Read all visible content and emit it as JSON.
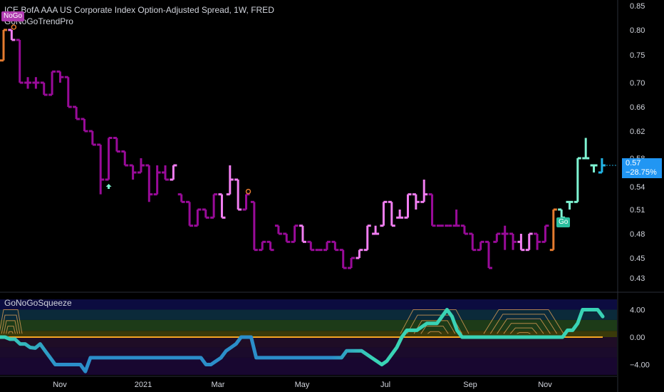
{
  "title": "ICE BofA AAA US Corporate Index Option-Adjusted Spread, 1W, FRED",
  "indicator": "GoNoGoTrendPro",
  "badges": {
    "nogo": "NoGo",
    "go": "Go"
  },
  "price_tag": {
    "value": "0.57",
    "change": "−28.75%"
  },
  "squeeze_title": "GoNoGoSqueeze",
  "colors": {
    "background": "#000000",
    "nogo_dark": "#990b99",
    "nogo_light": "#f27ef2",
    "go_light": "#7ff5d3",
    "go_strong": "#22b5e6",
    "amber": "#e57b2f",
    "zero_line": "#f5a623",
    "squeeze_line_start": "#2b8ec9",
    "squeeze_line_end": "#39d3b5"
  },
  "chart_data": [
    {
      "type": "line",
      "subtype": "ohlc-bars",
      "title": "ICE BofA AAA US Corporate Index Option-Adjusted Spread, 1W, FRED",
      "ylim": [
        0.41,
        0.86
      ],
      "y_ticks": [
        "0.85",
        "0.80",
        "0.75",
        "0.70",
        "0.66",
        "0.62",
        "0.58",
        "0.54",
        "0.51",
        "0.48",
        "0.45",
        "0.43"
      ],
      "x_ticks": [
        "Nov",
        "2021",
        "Mar",
        "May",
        "Jul",
        "Sep",
        "Nov"
      ],
      "series": [
        {
          "name": "GoNoGoTrendPro",
          "bars": [
            {
              "o": 0.74,
              "h": 0.8,
              "l": 0.74,
              "c": 0.8,
              "s": "amber"
            },
            {
              "o": 0.8,
              "h": 0.8,
              "l": 0.78,
              "c": 0.78,
              "s": "nogo_light"
            },
            {
              "o": 0.78,
              "h": 0.78,
              "l": 0.7,
              "c": 0.7,
              "s": "nogo_dark"
            },
            {
              "o": 0.7,
              "h": 0.71,
              "l": 0.69,
              "c": 0.7,
              "s": "nogo_dark"
            },
            {
              "o": 0.7,
              "h": 0.71,
              "l": 0.69,
              "c": 0.7,
              "s": "nogo_dark"
            },
            {
              "o": 0.7,
              "h": 0.7,
              "l": 0.68,
              "c": 0.68,
              "s": "nogo_dark"
            },
            {
              "o": 0.68,
              "h": 0.72,
              "l": 0.68,
              "c": 0.72,
              "s": "nogo_dark"
            },
            {
              "o": 0.72,
              "h": 0.72,
              "l": 0.7,
              "c": 0.71,
              "s": "nogo_dark"
            },
            {
              "o": 0.71,
              "h": 0.71,
              "l": 0.66,
              "c": 0.66,
              "s": "nogo_dark"
            },
            {
              "o": 0.66,
              "h": 0.66,
              "l": 0.64,
              "c": 0.64,
              "s": "nogo_dark"
            },
            {
              "o": 0.64,
              "h": 0.64,
              "l": 0.62,
              "c": 0.62,
              "s": "nogo_dark"
            },
            {
              "o": 0.62,
              "h": 0.62,
              "l": 0.6,
              "c": 0.6,
              "s": "nogo_dark"
            },
            {
              "o": 0.6,
              "h": 0.6,
              "l": 0.53,
              "c": 0.55,
              "s": "nogo_dark"
            },
            {
              "o": 0.55,
              "h": 0.61,
              "l": 0.55,
              "c": 0.61,
              "s": "nogo_dark"
            },
            {
              "o": 0.61,
              "h": 0.61,
              "l": 0.59,
              "c": 0.59,
              "s": "nogo_dark"
            },
            {
              "o": 0.59,
              "h": 0.59,
              "l": 0.57,
              "c": 0.57,
              "s": "nogo_dark"
            },
            {
              "o": 0.57,
              "h": 0.57,
              "l": 0.55,
              "c": 0.56,
              "s": "nogo_dark"
            },
            {
              "o": 0.56,
              "h": 0.58,
              "l": 0.56,
              "c": 0.57,
              "s": "nogo_dark"
            },
            {
              "o": 0.57,
              "h": 0.57,
              "l": 0.52,
              "c": 0.53,
              "s": "nogo_dark"
            },
            {
              "o": 0.53,
              "h": 0.57,
              "l": 0.53,
              "c": 0.56,
              "s": "nogo_dark"
            },
            {
              "o": 0.56,
              "h": 0.57,
              "l": 0.55,
              "c": 0.55,
              "s": "nogo_dark"
            },
            {
              "o": 0.55,
              "h": 0.57,
              "l": 0.55,
              "c": 0.57,
              "s": "nogo_light"
            },
            {
              "o": 0.53,
              "h": 0.53,
              "l": 0.52,
              "c": 0.52,
              "s": "nogo_dark"
            },
            {
              "o": 0.52,
              "h": 0.52,
              "l": 0.49,
              "c": 0.49,
              "s": "nogo_dark"
            },
            {
              "o": 0.49,
              "h": 0.51,
              "l": 0.49,
              "c": 0.51,
              "s": "nogo_dark"
            },
            {
              "o": 0.51,
              "h": 0.51,
              "l": 0.5,
              "c": 0.5,
              "s": "nogo_dark"
            },
            {
              "o": 0.5,
              "h": 0.53,
              "l": 0.5,
              "c": 0.53,
              "s": "nogo_dark"
            },
            {
              "o": 0.53,
              "h": 0.53,
              "l": 0.5,
              "c": 0.5,
              "s": "nogo_light"
            },
            {
              "o": 0.53,
              "h": 0.57,
              "l": 0.53,
              "c": 0.55,
              "s": "nogo_light"
            },
            {
              "o": 0.55,
              "h": 0.55,
              "l": 0.51,
              "c": 0.51,
              "s": "nogo_light"
            },
            {
              "o": 0.51,
              "h": 0.53,
              "l": 0.51,
              "c": 0.53,
              "s": "nogo_dark"
            },
            {
              "o": 0.52,
              "h": 0.52,
              "l": 0.46,
              "c": 0.46,
              "s": "nogo_dark"
            },
            {
              "o": 0.46,
              "h": 0.47,
              "l": 0.46,
              "c": 0.47,
              "s": "nogo_dark"
            },
            {
              "o": 0.47,
              "h": 0.47,
              "l": 0.46,
              "c": 0.46,
              "s": "nogo_dark"
            },
            {
              "o": 0.49,
              "h": 0.49,
              "l": 0.48,
              "c": 0.48,
              "s": "nogo_dark"
            },
            {
              "o": 0.48,
              "h": 0.48,
              "l": 0.47,
              "c": 0.47,
              "s": "nogo_dark"
            },
            {
              "o": 0.47,
              "h": 0.49,
              "l": 0.47,
              "c": 0.49,
              "s": "nogo_dark"
            },
            {
              "o": 0.49,
              "h": 0.49,
              "l": 0.47,
              "c": 0.47,
              "s": "nogo_light"
            },
            {
              "o": 0.47,
              "h": 0.47,
              "l": 0.46,
              "c": 0.46,
              "s": "nogo_dark"
            },
            {
              "o": 0.46,
              "h": 0.46,
              "l": 0.46,
              "c": 0.46,
              "s": "nogo_dark"
            },
            {
              "o": 0.46,
              "h": 0.47,
              "l": 0.46,
              "c": 0.47,
              "s": "nogo_dark"
            },
            {
              "o": 0.47,
              "h": 0.47,
              "l": 0.46,
              "c": 0.46,
              "s": "nogo_dark"
            },
            {
              "o": 0.46,
              "h": 0.46,
              "l": 0.44,
              "c": 0.44,
              "s": "nogo_dark"
            },
            {
              "o": 0.44,
              "h": 0.45,
              "l": 0.44,
              "c": 0.45,
              "s": "nogo_dark"
            },
            {
              "o": 0.45,
              "h": 0.46,
              "l": 0.45,
              "c": 0.46,
              "s": "nogo_light"
            },
            {
              "o": 0.46,
              "h": 0.49,
              "l": 0.46,
              "c": 0.49,
              "s": "nogo_light"
            },
            {
              "o": 0.48,
              "h": 0.49,
              "l": 0.48,
              "c": 0.48,
              "s": "nogo_light"
            },
            {
              "o": 0.49,
              "h": 0.52,
              "l": 0.49,
              "c": 0.52,
              "s": "nogo_light"
            },
            {
              "o": 0.52,
              "h": 0.52,
              "l": 0.49,
              "c": 0.49,
              "s": "nogo_light"
            },
            {
              "o": 0.5,
              "h": 0.51,
              "l": 0.5,
              "c": 0.5,
              "s": "nogo_light"
            },
            {
              "o": 0.5,
              "h": 0.53,
              "l": 0.5,
              "c": 0.53,
              "s": "nogo_light"
            },
            {
              "o": 0.53,
              "h": 0.53,
              "l": 0.51,
              "c": 0.52,
              "s": "nogo_light"
            },
            {
              "o": 0.52,
              "h": 0.55,
              "l": 0.52,
              "c": 0.53,
              "s": "nogo_light"
            },
            {
              "o": 0.53,
              "h": 0.53,
              "l": 0.49,
              "c": 0.49,
              "s": "nogo_dark"
            },
            {
              "o": 0.49,
              "h": 0.49,
              "l": 0.49,
              "c": 0.49,
              "s": "nogo_dark"
            },
            {
              "o": 0.49,
              "h": 0.49,
              "l": 0.49,
              "c": 0.49,
              "s": "nogo_dark"
            },
            {
              "o": 0.49,
              "h": 0.51,
              "l": 0.49,
              "c": 0.49,
              "s": "nogo_dark"
            },
            {
              "o": 0.49,
              "h": 0.49,
              "l": 0.48,
              "c": 0.48,
              "s": "nogo_dark"
            },
            {
              "o": 0.48,
              "h": 0.48,
              "l": 0.46,
              "c": 0.46,
              "s": "nogo_dark"
            },
            {
              "o": 0.46,
              "h": 0.47,
              "l": 0.46,
              "c": 0.47,
              "s": "nogo_dark"
            },
            {
              "o": 0.47,
              "h": 0.47,
              "l": 0.44,
              "c": 0.44,
              "s": "nogo_dark"
            },
            {
              "o": 0.47,
              "h": 0.48,
              "l": 0.47,
              "c": 0.48,
              "s": "nogo_dark"
            },
            {
              "o": 0.48,
              "h": 0.49,
              "l": 0.46,
              "c": 0.48,
              "s": "nogo_dark"
            },
            {
              "o": 0.48,
              "h": 0.48,
              "l": 0.46,
              "c": 0.47,
              "s": "nogo_dark"
            },
            {
              "o": 0.47,
              "h": 0.48,
              "l": 0.46,
              "c": 0.46,
              "s": "nogo_light"
            },
            {
              "o": 0.46,
              "h": 0.48,
              "l": 0.46,
              "c": 0.48,
              "s": "nogo_light"
            },
            {
              "o": 0.48,
              "h": 0.48,
              "l": 0.46,
              "c": 0.47,
              "s": "nogo_dark"
            },
            {
              "o": 0.47,
              "h": 0.49,
              "l": 0.47,
              "c": 0.49,
              "s": "nogo_dark"
            },
            {
              "o": 0.46,
              "h": 0.51,
              "l": 0.46,
              "c": 0.51,
              "s": "amber"
            },
            {
              "o": 0.51,
              "h": 0.51,
              "l": 0.5,
              "c": 0.5,
              "s": "go_light"
            },
            {
              "o": 0.52,
              "h": 0.52,
              "l": 0.51,
              "c": 0.52,
              "s": "go_light"
            },
            {
              "o": 0.52,
              "h": 0.58,
              "l": 0.52,
              "c": 0.58,
              "s": "go_light"
            },
            {
              "o": 0.58,
              "h": 0.61,
              "l": 0.58,
              "c": 0.58,
              "s": "go_light"
            },
            {
              "o": 0.57,
              "h": 0.57,
              "l": 0.56,
              "c": 0.57,
              "s": "go_light"
            },
            {
              "o": 0.56,
              "h": 0.58,
              "l": 0.56,
              "c": 0.57,
              "s": "go_strong"
            }
          ]
        }
      ],
      "annotations": [
        {
          "bar": 1,
          "kind": "circle",
          "color": "amber"
        },
        {
          "bar": 13,
          "kind": "arrow-up",
          "color": "go_light"
        },
        {
          "bar": 30,
          "kind": "circle",
          "color": "amber"
        },
        {
          "bar": 69,
          "kind": "arrow-up",
          "color": "go_light"
        }
      ]
    },
    {
      "type": "line",
      "title": "GoNoGoSqueeze",
      "ylim": [
        -5.5,
        5.5
      ],
      "y_ticks": [
        "4.00",
        "0.00",
        "−4.00"
      ],
      "zero_line": 0,
      "series": [
        {
          "name": "GoNoGoSqueeze",
          "values": [
            0,
            0,
            -0.3,
            -0.3,
            -1.0,
            -1.0,
            -1.5,
            -1.6,
            -1.0,
            -2.0,
            -3.0,
            -4.0,
            -4.0,
            -4.0,
            -4.0,
            -4.0,
            -4.0,
            -5.0,
            -3.0,
            -3.0,
            -3.0,
            -3.0,
            -3.0,
            -3.0,
            -3.0,
            -3.0,
            -3.0,
            -3.0,
            -3.0,
            -3.0,
            -3.0,
            -3.0,
            -3.0,
            -3.0,
            -3.0,
            -3.0,
            -3.0,
            -3.0,
            -3.0,
            -3.0,
            -3.0,
            -4.0,
            -4.0,
            -3.5,
            -3.0,
            -2.0,
            -1.5,
            -1.0,
            0,
            0,
            0,
            -3.0,
            -3.0,
            -3.0,
            -3.0,
            -3.0,
            -3.0,
            -3.0,
            -3.0,
            -3.0,
            -3.0,
            -3.0,
            -3.0,
            -3.0,
            -3.0,
            -3.0,
            -3.0,
            -3.0,
            -3.0,
            -2.0,
            -2.0,
            -2.0,
            -2.0,
            -2.5,
            -3.0,
            -3.5,
            -4.0,
            -3.5,
            -2.5,
            -1.5,
            0,
            1.0,
            1.0,
            1.0,
            1.5,
            2.0,
            2.0,
            2.0,
            3.0,
            4.0,
            3.0,
            1.0,
            0,
            0,
            0,
            0,
            0,
            0,
            0,
            0,
            0,
            0,
            0,
            0,
            0,
            0,
            0,
            0,
            0,
            0,
            0,
            0,
            0,
            1.0,
            1.0,
            2.0,
            4.0,
            4.0,
            4.0,
            4.0,
            3.0
          ]
        }
      ]
    }
  ]
}
